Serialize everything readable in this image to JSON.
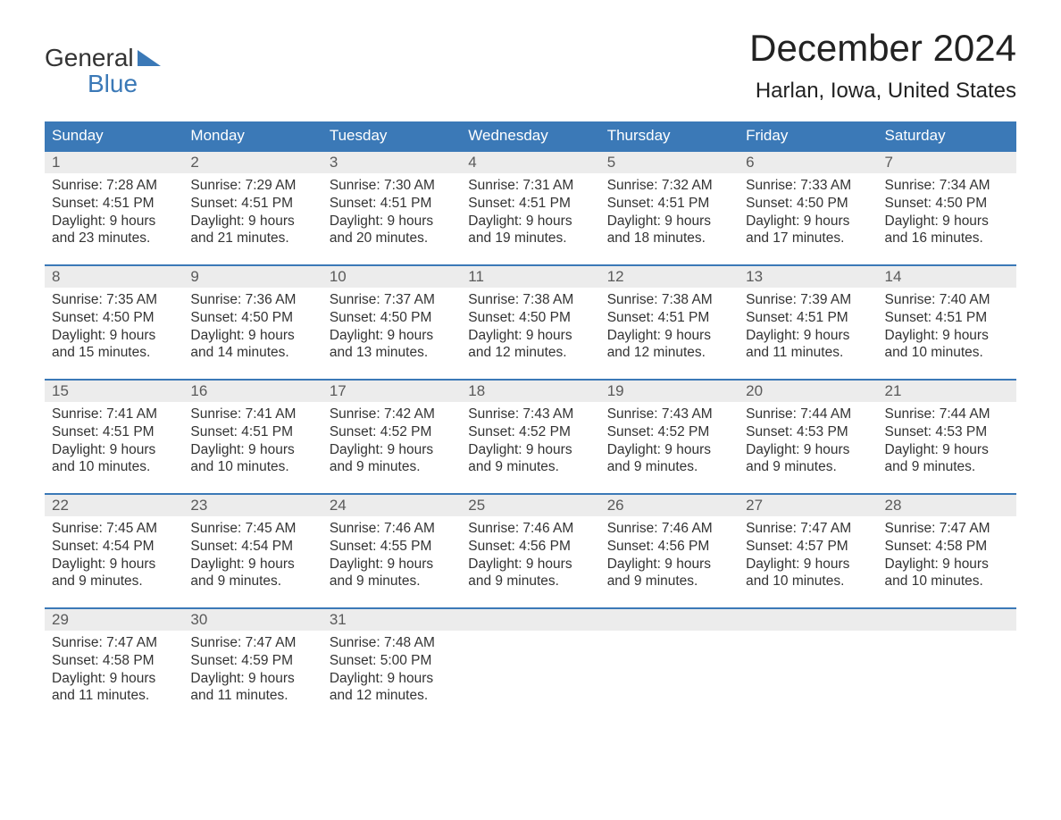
{
  "brand": {
    "word1": "General",
    "word2": "Blue"
  },
  "title": "December 2024",
  "location": "Harlan, Iowa, United States",
  "colors": {
    "header_bg": "#3b79b7",
    "header_text": "#ffffff",
    "daynum_bg": "#ececec",
    "daynum_text": "#5a5a5a",
    "body_text": "#333333",
    "rule": "#3b79b7",
    "brand_blue": "#3b79b7",
    "page_bg": "#ffffff"
  },
  "columns": [
    "Sunday",
    "Monday",
    "Tuesday",
    "Wednesday",
    "Thursday",
    "Friday",
    "Saturday"
  ],
  "weeks": [
    [
      {
        "n": "1",
        "sr": "Sunrise: 7:28 AM",
        "ss": "Sunset: 4:51 PM",
        "dl": "Daylight: 9 hours and 23 minutes."
      },
      {
        "n": "2",
        "sr": "Sunrise: 7:29 AM",
        "ss": "Sunset: 4:51 PM",
        "dl": "Daylight: 9 hours and 21 minutes."
      },
      {
        "n": "3",
        "sr": "Sunrise: 7:30 AM",
        "ss": "Sunset: 4:51 PM",
        "dl": "Daylight: 9 hours and 20 minutes."
      },
      {
        "n": "4",
        "sr": "Sunrise: 7:31 AM",
        "ss": "Sunset: 4:51 PM",
        "dl": "Daylight: 9 hours and 19 minutes."
      },
      {
        "n": "5",
        "sr": "Sunrise: 7:32 AM",
        "ss": "Sunset: 4:51 PM",
        "dl": "Daylight: 9 hours and 18 minutes."
      },
      {
        "n": "6",
        "sr": "Sunrise: 7:33 AM",
        "ss": "Sunset: 4:50 PM",
        "dl": "Daylight: 9 hours and 17 minutes."
      },
      {
        "n": "7",
        "sr": "Sunrise: 7:34 AM",
        "ss": "Sunset: 4:50 PM",
        "dl": "Daylight: 9 hours and 16 minutes."
      }
    ],
    [
      {
        "n": "8",
        "sr": "Sunrise: 7:35 AM",
        "ss": "Sunset: 4:50 PM",
        "dl": "Daylight: 9 hours and 15 minutes."
      },
      {
        "n": "9",
        "sr": "Sunrise: 7:36 AM",
        "ss": "Sunset: 4:50 PM",
        "dl": "Daylight: 9 hours and 14 minutes."
      },
      {
        "n": "10",
        "sr": "Sunrise: 7:37 AM",
        "ss": "Sunset: 4:50 PM",
        "dl": "Daylight: 9 hours and 13 minutes."
      },
      {
        "n": "11",
        "sr": "Sunrise: 7:38 AM",
        "ss": "Sunset: 4:50 PM",
        "dl": "Daylight: 9 hours and 12 minutes."
      },
      {
        "n": "12",
        "sr": "Sunrise: 7:38 AM",
        "ss": "Sunset: 4:51 PM",
        "dl": "Daylight: 9 hours and 12 minutes."
      },
      {
        "n": "13",
        "sr": "Sunrise: 7:39 AM",
        "ss": "Sunset: 4:51 PM",
        "dl": "Daylight: 9 hours and 11 minutes."
      },
      {
        "n": "14",
        "sr": "Sunrise: 7:40 AM",
        "ss": "Sunset: 4:51 PM",
        "dl": "Daylight: 9 hours and 10 minutes."
      }
    ],
    [
      {
        "n": "15",
        "sr": "Sunrise: 7:41 AM",
        "ss": "Sunset: 4:51 PM",
        "dl": "Daylight: 9 hours and 10 minutes."
      },
      {
        "n": "16",
        "sr": "Sunrise: 7:41 AM",
        "ss": "Sunset: 4:51 PM",
        "dl": "Daylight: 9 hours and 10 minutes."
      },
      {
        "n": "17",
        "sr": "Sunrise: 7:42 AM",
        "ss": "Sunset: 4:52 PM",
        "dl": "Daylight: 9 hours and 9 minutes."
      },
      {
        "n": "18",
        "sr": "Sunrise: 7:43 AM",
        "ss": "Sunset: 4:52 PM",
        "dl": "Daylight: 9 hours and 9 minutes."
      },
      {
        "n": "19",
        "sr": "Sunrise: 7:43 AM",
        "ss": "Sunset: 4:52 PM",
        "dl": "Daylight: 9 hours and 9 minutes."
      },
      {
        "n": "20",
        "sr": "Sunrise: 7:44 AM",
        "ss": "Sunset: 4:53 PM",
        "dl": "Daylight: 9 hours and 9 minutes."
      },
      {
        "n": "21",
        "sr": "Sunrise: 7:44 AM",
        "ss": "Sunset: 4:53 PM",
        "dl": "Daylight: 9 hours and 9 minutes."
      }
    ],
    [
      {
        "n": "22",
        "sr": "Sunrise: 7:45 AM",
        "ss": "Sunset: 4:54 PM",
        "dl": "Daylight: 9 hours and 9 minutes."
      },
      {
        "n": "23",
        "sr": "Sunrise: 7:45 AM",
        "ss": "Sunset: 4:54 PM",
        "dl": "Daylight: 9 hours and 9 minutes."
      },
      {
        "n": "24",
        "sr": "Sunrise: 7:46 AM",
        "ss": "Sunset: 4:55 PM",
        "dl": "Daylight: 9 hours and 9 minutes."
      },
      {
        "n": "25",
        "sr": "Sunrise: 7:46 AM",
        "ss": "Sunset: 4:56 PM",
        "dl": "Daylight: 9 hours and 9 minutes."
      },
      {
        "n": "26",
        "sr": "Sunrise: 7:46 AM",
        "ss": "Sunset: 4:56 PM",
        "dl": "Daylight: 9 hours and 9 minutes."
      },
      {
        "n": "27",
        "sr": "Sunrise: 7:47 AM",
        "ss": "Sunset: 4:57 PM",
        "dl": "Daylight: 9 hours and 10 minutes."
      },
      {
        "n": "28",
        "sr": "Sunrise: 7:47 AM",
        "ss": "Sunset: 4:58 PM",
        "dl": "Daylight: 9 hours and 10 minutes."
      }
    ],
    [
      {
        "n": "29",
        "sr": "Sunrise: 7:47 AM",
        "ss": "Sunset: 4:58 PM",
        "dl": "Daylight: 9 hours and 11 minutes."
      },
      {
        "n": "30",
        "sr": "Sunrise: 7:47 AM",
        "ss": "Sunset: 4:59 PM",
        "dl": "Daylight: 9 hours and 11 minutes."
      },
      {
        "n": "31",
        "sr": "Sunrise: 7:48 AM",
        "ss": "Sunset: 5:00 PM",
        "dl": "Daylight: 9 hours and 12 minutes."
      },
      null,
      null,
      null,
      null
    ]
  ]
}
